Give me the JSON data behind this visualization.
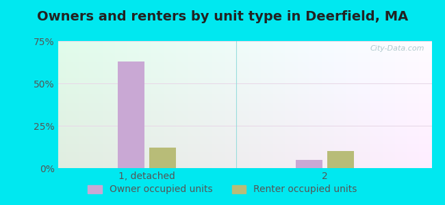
{
  "title": "Owners and renters by unit type in Deerfield, MA",
  "groups": [
    "1, detached",
    "2"
  ],
  "series": [
    {
      "label": "Owner occupied units",
      "values": [
        63.0,
        5.0
      ],
      "color": "#c9a8d4"
    },
    {
      "label": "Renter occupied units",
      "values": [
        12.0,
        10.0
      ],
      "color": "#b8bc78"
    }
  ],
  "ylim": [
    0,
    75
  ],
  "yticks": [
    0,
    25,
    50,
    75
  ],
  "ytick_labels": [
    "0%",
    "25%",
    "50%",
    "75%"
  ],
  "bar_width": 0.3,
  "group_positions": [
    1.0,
    3.0
  ],
  "background_outer": "#00e8f0",
  "title_fontsize": 14,
  "legend_fontsize": 10,
  "axis_fontsize": 10,
  "watermark": "City-Data.com"
}
